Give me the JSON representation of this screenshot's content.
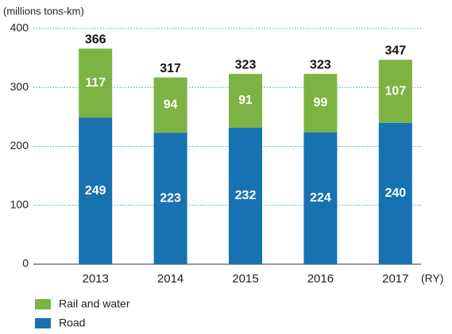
{
  "chart_data": {
    "type": "bar",
    "stacked": true,
    "y_label": "(millions tons-km)",
    "x_label": "(RY)",
    "categories": [
      "2013",
      "2014",
      "2015",
      "2016",
      "2017"
    ],
    "series": [
      {
        "name": "Rail and water",
        "color": "#7cb342",
        "values": [
          117,
          94,
          91,
          99,
          107
        ]
      },
      {
        "name": "Road",
        "color": "#1872b2",
        "values": [
          249,
          223,
          232,
          224,
          240
        ]
      }
    ],
    "totals": [
      366,
      317,
      323,
      323,
      347
    ],
    "ylim": [
      0,
      400
    ],
    "yticks": [
      0,
      100,
      200,
      300,
      400
    ],
    "grid": true
  }
}
